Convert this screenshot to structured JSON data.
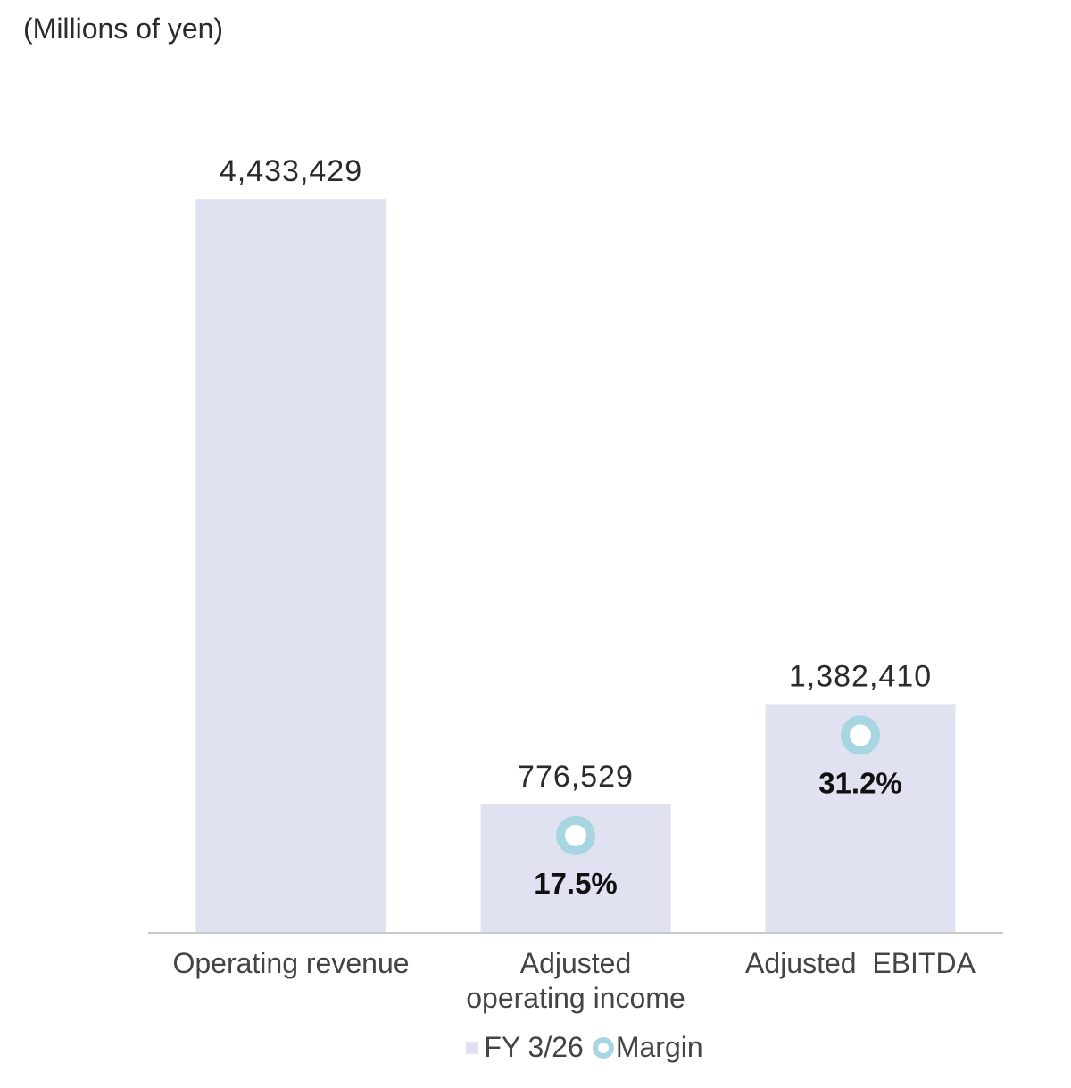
{
  "unit_label": "(Millions of yen)",
  "colors": {
    "bar": "#e0e2f1",
    "margin_marker": "#a8d5e2",
    "axis": "#c9c9c9"
  },
  "chart_data": {
    "type": "bar",
    "categories": [
      [
        "Operating revenue"
      ],
      [
        "Adjusted",
        "operating income"
      ],
      [
        "Adjusted  EBITDA"
      ]
    ],
    "series": [
      {
        "name": "FY 3/26",
        "values": [
          4433429,
          776529,
          1382410
        ],
        "value_labels": [
          "4,433,429",
          "776,529",
          "1,382,410"
        ]
      },
      {
        "name": "Margin",
        "values": [
          null,
          17.5,
          31.2
        ],
        "value_labels": [
          "",
          "17.5%",
          "31.2%"
        ]
      }
    ],
    "ylim": [
      0,
      5000000
    ]
  },
  "legend": {
    "bar_label": "FY 3/26",
    "marker_label": "Margin"
  }
}
